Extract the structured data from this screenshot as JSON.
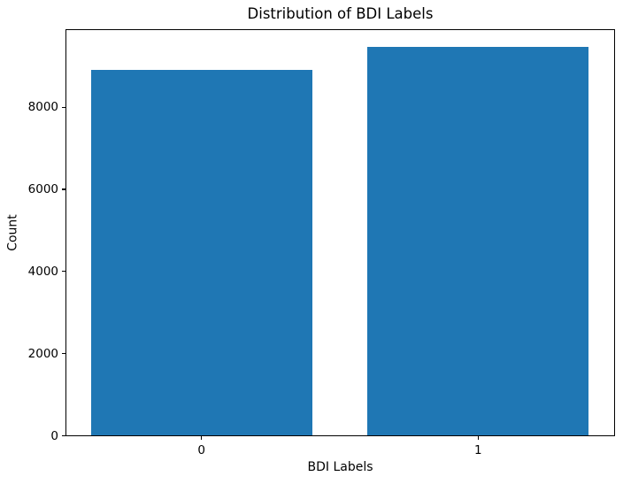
{
  "chart_data": {
    "type": "bar",
    "title": "Distribution of BDI Labels",
    "xlabel": "BDI Labels",
    "ylabel": "Count",
    "categories": [
      "0",
      "1"
    ],
    "values": [
      8900,
      9450
    ],
    "x_positions": [
      0,
      1
    ],
    "bar_width": 0.8,
    "bar_color": "#1f77b4",
    "xlim": [
      -0.49,
      1.49
    ],
    "ylim": [
      0,
      9890
    ],
    "yticks": [
      0,
      2000,
      4000,
      6000,
      8000
    ],
    "ytick_labels": [
      "0",
      "2000",
      "4000",
      "6000",
      "8000"
    ],
    "grid": false,
    "legend": "none",
    "background_color": "#ffffff",
    "spine_color": "#000000",
    "text_color": "#000000"
  }
}
